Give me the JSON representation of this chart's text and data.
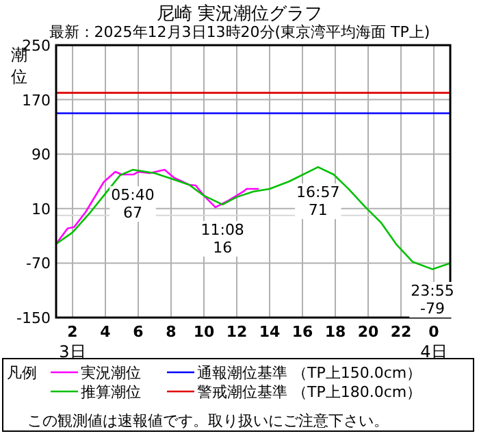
{
  "chart_data": {
    "type": "line",
    "title": "尼崎 実況潮位グラフ",
    "subtitle": "最新：2025年12月3日13時20分(東京湾平均海面 TP上)",
    "ylabel": "潮位",
    "legend_title": "凡例",
    "xlim": [
      "2025-12-03T01:00",
      "2025-12-04T01:00"
    ],
    "xticks": [
      {
        "value": "2025-12-03T02:00",
        "label": "2"
      },
      {
        "value": "2025-12-03T04:00",
        "label": "4"
      },
      {
        "value": "2025-12-03T06:00",
        "label": "6"
      },
      {
        "value": "2025-12-03T08:00",
        "label": "8"
      },
      {
        "value": "2025-12-03T10:00",
        "label": "10"
      },
      {
        "value": "2025-12-03T12:00",
        "label": "12"
      },
      {
        "value": "2025-12-03T14:00",
        "label": "14"
      },
      {
        "value": "2025-12-03T16:00",
        "label": "16"
      },
      {
        "value": "2025-12-03T18:00",
        "label": "18"
      },
      {
        "value": "2025-12-03T20:00",
        "label": "20"
      },
      {
        "value": "2025-12-03T22:00",
        "label": "22"
      },
      {
        "value": "2025-12-04T00:00",
        "label": "0"
      }
    ],
    "ylim": [
      -150,
      250
    ],
    "yticks": [
      -150,
      -70,
      10,
      90,
      170,
      250
    ],
    "grid": true,
    "legend": "bottom",
    "series": [
      {
        "name": "実況潮位",
        "color": "#ff00ff",
        "x": [
          "2025-12-03T01:00",
          "2025-12-03T01:42",
          "2025-12-03T02:06",
          "2025-12-03T02:48",
          "2025-12-03T03:54",
          "2025-12-03T04:36",
          "2025-12-03T05:00",
          "2025-12-03T05:42",
          "2025-12-03T06:00",
          "2025-12-03T06:42",
          "2025-12-03T07:36",
          "2025-12-03T08:12",
          "2025-12-03T09:06",
          "2025-12-03T09:30",
          "2025-12-03T10:00",
          "2025-12-03T10:42",
          "2025-12-03T11:30",
          "2025-12-03T12:24",
          "2025-12-03T12:36",
          "2025-12-03T13:20"
        ],
        "values": [
          -42,
          -19,
          -17,
          5,
          49,
          64,
          60,
          60,
          64,
          62,
          67,
          55,
          45,
          44,
          29,
          12,
          22,
          35,
          39,
          39
        ]
      },
      {
        "name": "推算潮位",
        "color": "#00c000",
        "x": [
          "2025-12-03T01:00",
          "2025-12-03T02:00",
          "2025-12-03T03:06",
          "2025-12-03T04:00",
          "2025-12-03T04:54",
          "2025-12-03T05:40",
          "2025-12-03T07:00",
          "2025-12-03T08:00",
          "2025-12-03T09:06",
          "2025-12-03T10:00",
          "2025-12-03T11:08",
          "2025-12-03T12:00",
          "2025-12-03T13:00",
          "2025-12-03T14:00",
          "2025-12-03T15:12",
          "2025-12-03T16:57",
          "2025-12-03T17:54",
          "2025-12-03T18:48",
          "2025-12-03T19:48",
          "2025-12-03T20:48",
          "2025-12-03T21:42",
          "2025-12-03T22:42",
          "2025-12-03T23:55",
          "2025-12-04T01:00"
        ],
        "values": [
          -42,
          -25,
          5,
          32,
          59,
          67,
          62,
          54,
          45,
          29,
          16,
          27,
          35,
          39,
          50,
          71,
          60,
          39,
          13,
          -11,
          -42,
          -68,
          -79,
          -70
        ]
      }
    ],
    "ref_lines": [
      {
        "axis": "y",
        "value": 150,
        "label": "通報潮位基準 （TP上150.0cm）",
        "color": "#0000ff"
      },
      {
        "axis": "y",
        "value": 180,
        "label": "警戒潮位基準 （TP上180.0cm）",
        "color": "#e00000"
      },
      {
        "axis": "y",
        "value": 0,
        "color": "#d8d8d8"
      }
    ],
    "annotations": [
      {
        "text": "05:40 67",
        "x": "2025-12-03T05:40",
        "y": 67
      },
      {
        "text": "11:08 16",
        "x": "2025-12-03T11:08",
        "y": 16
      },
      {
        "text": "16:57 71",
        "x": "2025-12-03T16:57",
        "y": 71
      },
      {
        "text": "23:55 -79",
        "x": "2025-12-03T23:55",
        "y": -79
      },
      "3日",
      "4日",
      "この観測値は速報値です。取り扱いにご注意下さい。"
    ]
  }
}
